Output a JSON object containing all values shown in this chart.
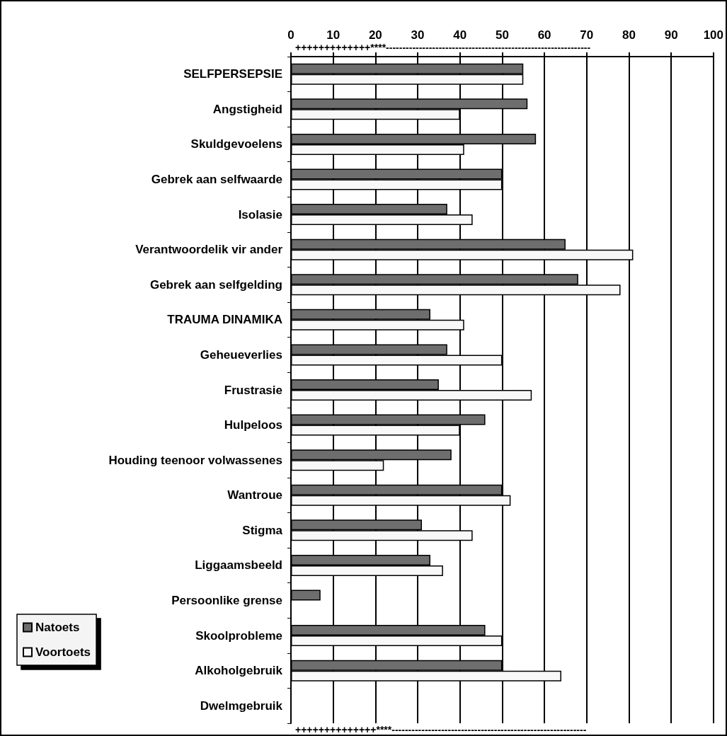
{
  "chart_data": {
    "type": "bar",
    "orientation": "horizontal",
    "categories": [
      "SELFPERSEPSIE",
      "Angstigheid",
      "Skuldgevoelens",
      "Gebrek aan selfwaarde",
      "Isolasie",
      "Verantwoordelik vir ander",
      "Gebrek aan selfgelding",
      "TRAUMA DINAMIKA",
      "Geheueverlies",
      "Frustrasie",
      "Hulpeloos",
      "Houding teenoor volwassenes",
      "Wantroue",
      "Stigma",
      "Liggaamsbeeld",
      "Persoonlike grense",
      "Skoolprobleme",
      "Alkoholgebruik",
      "Dwelmgebruik"
    ],
    "series": [
      {
        "name": "Natoets",
        "color": "#6e6e6e",
        "values": [
          55,
          56,
          58,
          50,
          37,
          65,
          68,
          33,
          37,
          35,
          46,
          38,
          50,
          31,
          33,
          7,
          46,
          50,
          null
        ]
      },
      {
        "name": "Voortoets",
        "color": "#f8f8f8",
        "values": [
          55,
          40,
          41,
          50,
          43,
          81,
          78,
          41,
          50,
          57,
          40,
          22,
          52,
          43,
          36,
          null,
          50,
          64,
          null
        ]
      }
    ],
    "xlim": [
      0,
      100
    ],
    "xticks": [
      0,
      10,
      20,
      30,
      40,
      50,
      60,
      70,
      80,
      90,
      100
    ],
    "grid": "x",
    "legend": "bottom left",
    "annotations": [
      "+++++++++++++****--------------------------------------------------------------",
      "++++++++++++++****-----------------------------------------------------------"
    ]
  }
}
